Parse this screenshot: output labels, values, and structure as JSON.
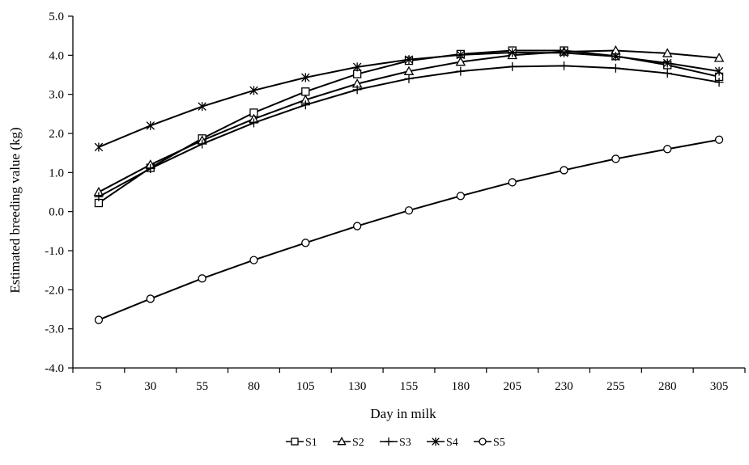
{
  "chart_data": {
    "type": "line",
    "title": "",
    "xlabel": "Day in milk",
    "ylabel": "Estimated breeding value  (kg)",
    "x": [
      5,
      30,
      55,
      80,
      105,
      130,
      155,
      180,
      205,
      230,
      255,
      280,
      305
    ],
    "x_tick_labels": [
      "5",
      "30",
      "55",
      "80",
      "105",
      "130",
      "155",
      "180",
      "205",
      "230",
      "255",
      "280",
      "305"
    ],
    "ylim": [
      -4.0,
      5.0
    ],
    "y_ticks": [
      -4.0,
      -3.0,
      -2.0,
      -1.0,
      0.0,
      1.0,
      2.0,
      3.0,
      4.0,
      5.0
    ],
    "y_tick_labels": [
      "-4.0",
      "-3.0",
      "-2.0",
      "-1.0",
      "0.0",
      "1.0",
      "2.0",
      "3.0",
      "4.0",
      "5.0"
    ],
    "grid": false,
    "legend_position": "bottom-center",
    "series": [
      {
        "name": "S1",
        "marker": "square",
        "color": "#000000",
        "values": [
          0.22,
          1.12,
          1.87,
          2.53,
          3.07,
          3.52,
          3.86,
          4.03,
          4.12,
          4.12,
          3.98,
          3.75,
          3.45
        ]
      },
      {
        "name": "S2",
        "marker": "triangle",
        "color": "#000000",
        "values": [
          0.5,
          1.2,
          1.82,
          2.37,
          2.86,
          3.27,
          3.59,
          3.83,
          4.0,
          4.09,
          4.12,
          4.05,
          3.93
        ]
      },
      {
        "name": "S3",
        "marker": "plus",
        "color": "#000000",
        "values": [
          0.38,
          1.1,
          1.73,
          2.27,
          2.73,
          3.12,
          3.4,
          3.59,
          3.71,
          3.73,
          3.67,
          3.54,
          3.31
        ]
      },
      {
        "name": "S4",
        "marker": "asterisk",
        "color": "#000000",
        "values": [
          1.65,
          2.2,
          2.69,
          3.1,
          3.43,
          3.7,
          3.89,
          4.01,
          4.07,
          4.06,
          3.97,
          3.8,
          3.59
        ]
      },
      {
        "name": "S5",
        "marker": "circle",
        "color": "#000000",
        "values": [
          -2.77,
          -2.23,
          -1.71,
          -1.24,
          -0.8,
          -0.37,
          0.03,
          0.4,
          0.75,
          1.06,
          1.35,
          1.6,
          1.84
        ]
      }
    ]
  }
}
